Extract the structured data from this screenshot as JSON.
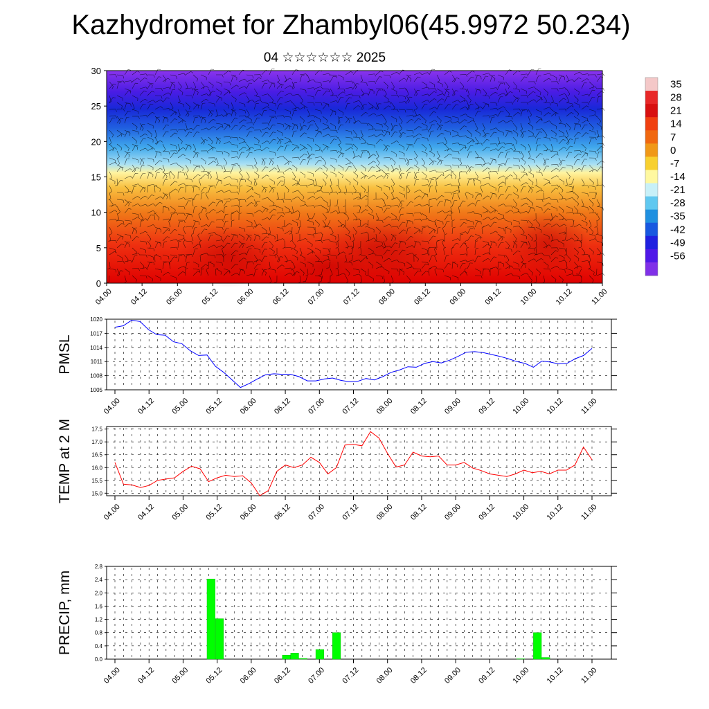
{
  "title": "Kazhydromet for Zhambyl06(45.9972 50.234)",
  "subtitle": "04 ☆☆☆☆☆☆ 2025",
  "colorbar": {
    "labels": [
      "35",
      "28",
      "21",
      "14",
      "7",
      "0",
      "-7",
      "-14",
      "-21",
      "-28",
      "-35",
      "-42",
      "-49",
      "-56"
    ],
    "colors": [
      "#f4c8c8",
      "#e82828",
      "#d81010",
      "#f04010",
      "#f06810",
      "#f09818",
      "#f8d030",
      "#fff8a0",
      "#c8f0f8",
      "#60c8f0",
      "#2090e0",
      "#1858e0",
      "#2020e0",
      "#5018e8",
      "#8030e8"
    ]
  },
  "chart_data": [
    {
      "type": "heatmap",
      "name": "cross-section",
      "ylim": [
        0,
        30
      ],
      "yticks": [
        "0",
        "5",
        "10",
        "15",
        "20",
        "25",
        "30"
      ],
      "xticks": [
        "04.00",
        "04.12",
        "05.00",
        "05.12",
        "06.00",
        "06.12",
        "07.00",
        "07.12",
        "08.00",
        "08.12",
        "09.00",
        "09.12",
        "10.00",
        "10.12",
        "11.00"
      ],
      "levels": [
        0,
        5,
        10,
        15,
        20,
        25,
        30
      ],
      "temperature_profile": [
        21,
        18,
        10,
        -5,
        -30,
        -50,
        -56
      ]
    },
    {
      "type": "line",
      "ylabel": "PMSL",
      "ylim": [
        1005,
        1020
      ],
      "yticks": [
        "1005",
        "1008",
        "1011",
        "1014",
        "1017",
        "1020"
      ],
      "xticks": [
        "04.00",
        "04.12",
        "05.00",
        "05.12",
        "06.00",
        "06.12",
        "07.00",
        "07.12",
        "08.00",
        "08.12",
        "09.00",
        "09.12",
        "10.00",
        "10.12",
        "11.00"
      ],
      "color": "#0000ff",
      "values": [
        1018.3,
        1018.6,
        1019.8,
        1019.5,
        1017.8,
        1016.7,
        1016.6,
        1015.2,
        1014.8,
        1013.3,
        1012.3,
        1012.4,
        1010.0,
        1008.7,
        1007.1,
        1005.5,
        1006.3,
        1007.3,
        1008.2,
        1008.4,
        1008.3,
        1008.3,
        1007.8,
        1006.9,
        1006.9,
        1007.3,
        1007.5,
        1007.0,
        1006.7,
        1006.8,
        1007.4,
        1007.1,
        1007.8,
        1008.7,
        1009.2,
        1009.9,
        1009.8,
        1010.6,
        1011.0,
        1010.7,
        1011.3,
        1012.1,
        1013.0,
        1013.1,
        1012.9,
        1012.5,
        1012.1,
        1011.6,
        1011.0,
        1010.6,
        1009.8,
        1011.1,
        1010.9,
        1010.5,
        1010.6,
        1011.6,
        1012.3,
        1013.8
      ]
    },
    {
      "type": "line",
      "ylabel": "TEMP at 2 M",
      "ylim": [
        14.9,
        17.6
      ],
      "yticks": [
        "15.0",
        "15.5",
        "16.0",
        "16.5",
        "17.0",
        "17.5"
      ],
      "xticks": [
        "04.00",
        "04.12",
        "05.00",
        "05.12",
        "06.00",
        "06.12",
        "07.00",
        "07.12",
        "08.00",
        "08.12",
        "09.00",
        "09.12",
        "10.00",
        "10.12",
        "11.00"
      ],
      "color": "#ff0000",
      "values": [
        16.2,
        15.35,
        15.32,
        15.22,
        15.3,
        15.5,
        15.55,
        15.6,
        15.85,
        16.05,
        15.95,
        15.45,
        15.6,
        15.7,
        15.65,
        15.68,
        15.4,
        14.9,
        15.1,
        15.85,
        16.1,
        16.0,
        16.1,
        16.4,
        16.2,
        15.75,
        16.0,
        16.88,
        16.9,
        16.85,
        17.4,
        17.15,
        16.55,
        16.02,
        16.1,
        16.6,
        16.45,
        16.42,
        16.45,
        16.1,
        16.1,
        16.2,
        15.98,
        15.88,
        15.75,
        15.7,
        15.65,
        15.75,
        15.9,
        15.8,
        15.85,
        15.75,
        15.9,
        15.9,
        16.1,
        16.8,
        16.3
      ]
    },
    {
      "type": "bar",
      "ylabel": "PRECIP, mm",
      "ylim": [
        0,
        2.8
      ],
      "yticks": [
        "0.0",
        "0.4",
        "0.8",
        "1.2",
        "1.6",
        "2.0",
        "2.4",
        "2.8"
      ],
      "xticks": [
        "04.00",
        "04.12",
        "05.00",
        "05.12",
        "06.00",
        "06.12",
        "07.00",
        "07.12",
        "08.00",
        "08.12",
        "09.00",
        "09.12",
        "10.00",
        "10.12",
        "11.00"
      ],
      "color": "#00ff00",
      "bars": [
        {
          "slot": 11,
          "value": 2.42
        },
        {
          "slot": 12,
          "value": 1.22
        },
        {
          "slot": 20,
          "value": 0.12
        },
        {
          "slot": 21,
          "value": 0.18
        },
        {
          "slot": 22,
          "value": 0.02
        },
        {
          "slot": 24,
          "value": 0.29
        },
        {
          "slot": 26,
          "value": 0.8
        },
        {
          "slot": 48,
          "value": 0.01
        },
        {
          "slot": 50,
          "value": 0.8
        },
        {
          "slot": 51,
          "value": 0.05
        }
      ]
    }
  ]
}
